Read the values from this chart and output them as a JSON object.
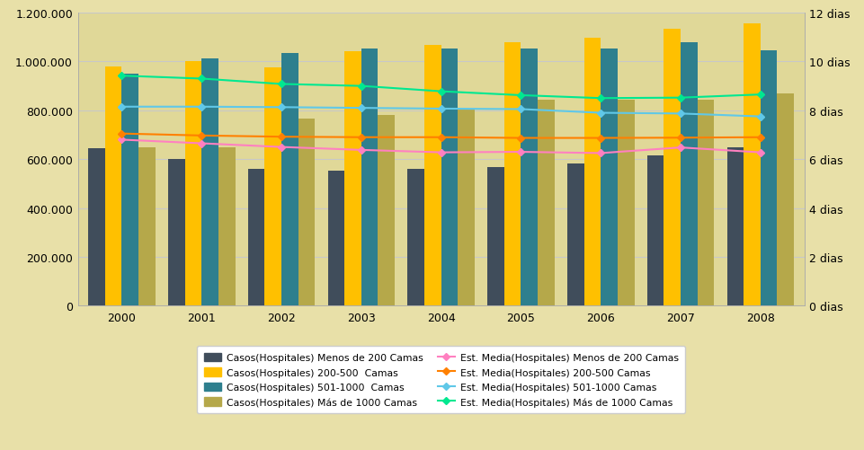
{
  "years": [
    2000,
    2001,
    2002,
    2003,
    2004,
    2005,
    2006,
    2007,
    2008
  ],
  "bars": {
    "menos200": [
      645000,
      600000,
      560000,
      553000,
      560000,
      567000,
      583000,
      615000,
      648000
    ],
    "c200_500": [
      980000,
      1000000,
      975000,
      1043000,
      1068000,
      1078000,
      1098000,
      1133000,
      1155000
    ],
    "c501_1000": [
      950000,
      1012000,
      1035000,
      1052000,
      1052000,
      1052000,
      1053000,
      1078000,
      1047000
    ],
    "mas1000": [
      648000,
      648000,
      765000,
      782000,
      802000,
      845000,
      845000,
      845000,
      870000
    ]
  },
  "lines": {
    "em_menos200": [
      6.8,
      6.65,
      6.5,
      6.38,
      6.28,
      6.3,
      6.25,
      6.48,
      6.28
    ],
    "em_200_500": [
      7.05,
      6.97,
      6.92,
      6.9,
      6.9,
      6.87,
      6.87,
      6.88,
      6.9
    ],
    "em_501_1000": [
      8.15,
      8.15,
      8.13,
      8.1,
      8.07,
      8.05,
      7.9,
      7.87,
      7.75
    ],
    "em_mas1000": [
      9.42,
      9.3,
      9.08,
      9.0,
      8.78,
      8.62,
      8.5,
      8.52,
      8.65
    ]
  },
  "bar_colors": {
    "menos200": "#404d5b",
    "c200_500": "#ffc000",
    "c501_1000": "#2e7f8e",
    "mas1000": "#b5a84a"
  },
  "line_colors": {
    "em_menos200": "#ff80c0",
    "em_200_500": "#ff8000",
    "em_501_1000": "#60c8e8",
    "em_mas1000": "#00e890"
  },
  "ylim_left": [
    0,
    1200000
  ],
  "ylim_right": [
    0,
    12
  ],
  "yticks_left": [
    0,
    200000,
    400000,
    600000,
    800000,
    1000000,
    1200000
  ],
  "yticks_right": [
    0,
    2,
    4,
    6,
    8,
    10,
    12
  ],
  "ytick_labels_left": [
    "0",
    "200.000",
    "400.000",
    "600.000",
    "800.000",
    "1.000.000",
    "1.200.000"
  ],
  "ytick_labels_right": [
    "0 dias",
    "2 dias",
    "4 dias",
    "6 dias",
    "8 dias",
    "10 dias",
    "12 dias"
  ],
  "fig_bg": "#e8e0a8",
  "plot_bg": "#e0d898",
  "grid_color": "#c8c8c8",
  "legend_bar_labels": [
    "Casos(Hospitales) Menos de 200 Camas",
    "Casos(Hospitales) 200-500  Camas",
    "Casos(Hospitales) 501-1000  Camas",
    "Casos(Hospitales) Más de 1000 Camas"
  ],
  "legend_line_labels": [
    "Est. Media(Hospitales) Menos de 200 Camas",
    "Est. Media(Hospitales) 200-500 Camas",
    "Est. Media(Hospitales) 501-1000 Camas",
    "Est. Media(Hospitales) Más de 1000 Camas"
  ]
}
